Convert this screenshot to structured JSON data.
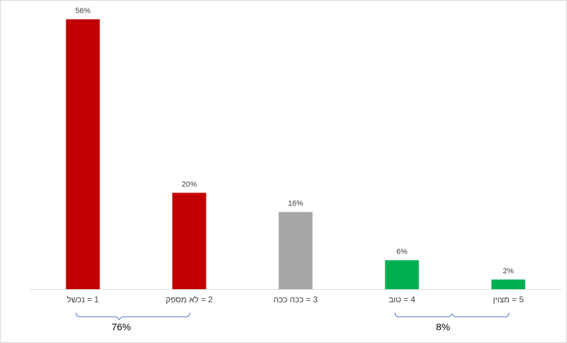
{
  "chart_data": {
    "type": "bar",
    "categories": [
      "1 = נכשל",
      "2 = לא מספק",
      "3 = ככה ככה",
      "4 = טוב",
      "5 = מצוין"
    ],
    "values": [
      56,
      20,
      16,
      6,
      2
    ],
    "value_labels": [
      "56%",
      "20%",
      "16%",
      "6%",
      "2%"
    ],
    "colors": [
      "#c00000",
      "#c00000",
      "#a6a6a6",
      "#00b050",
      "#00b050"
    ],
    "annotations": [
      "76%",
      "8%"
    ]
  }
}
